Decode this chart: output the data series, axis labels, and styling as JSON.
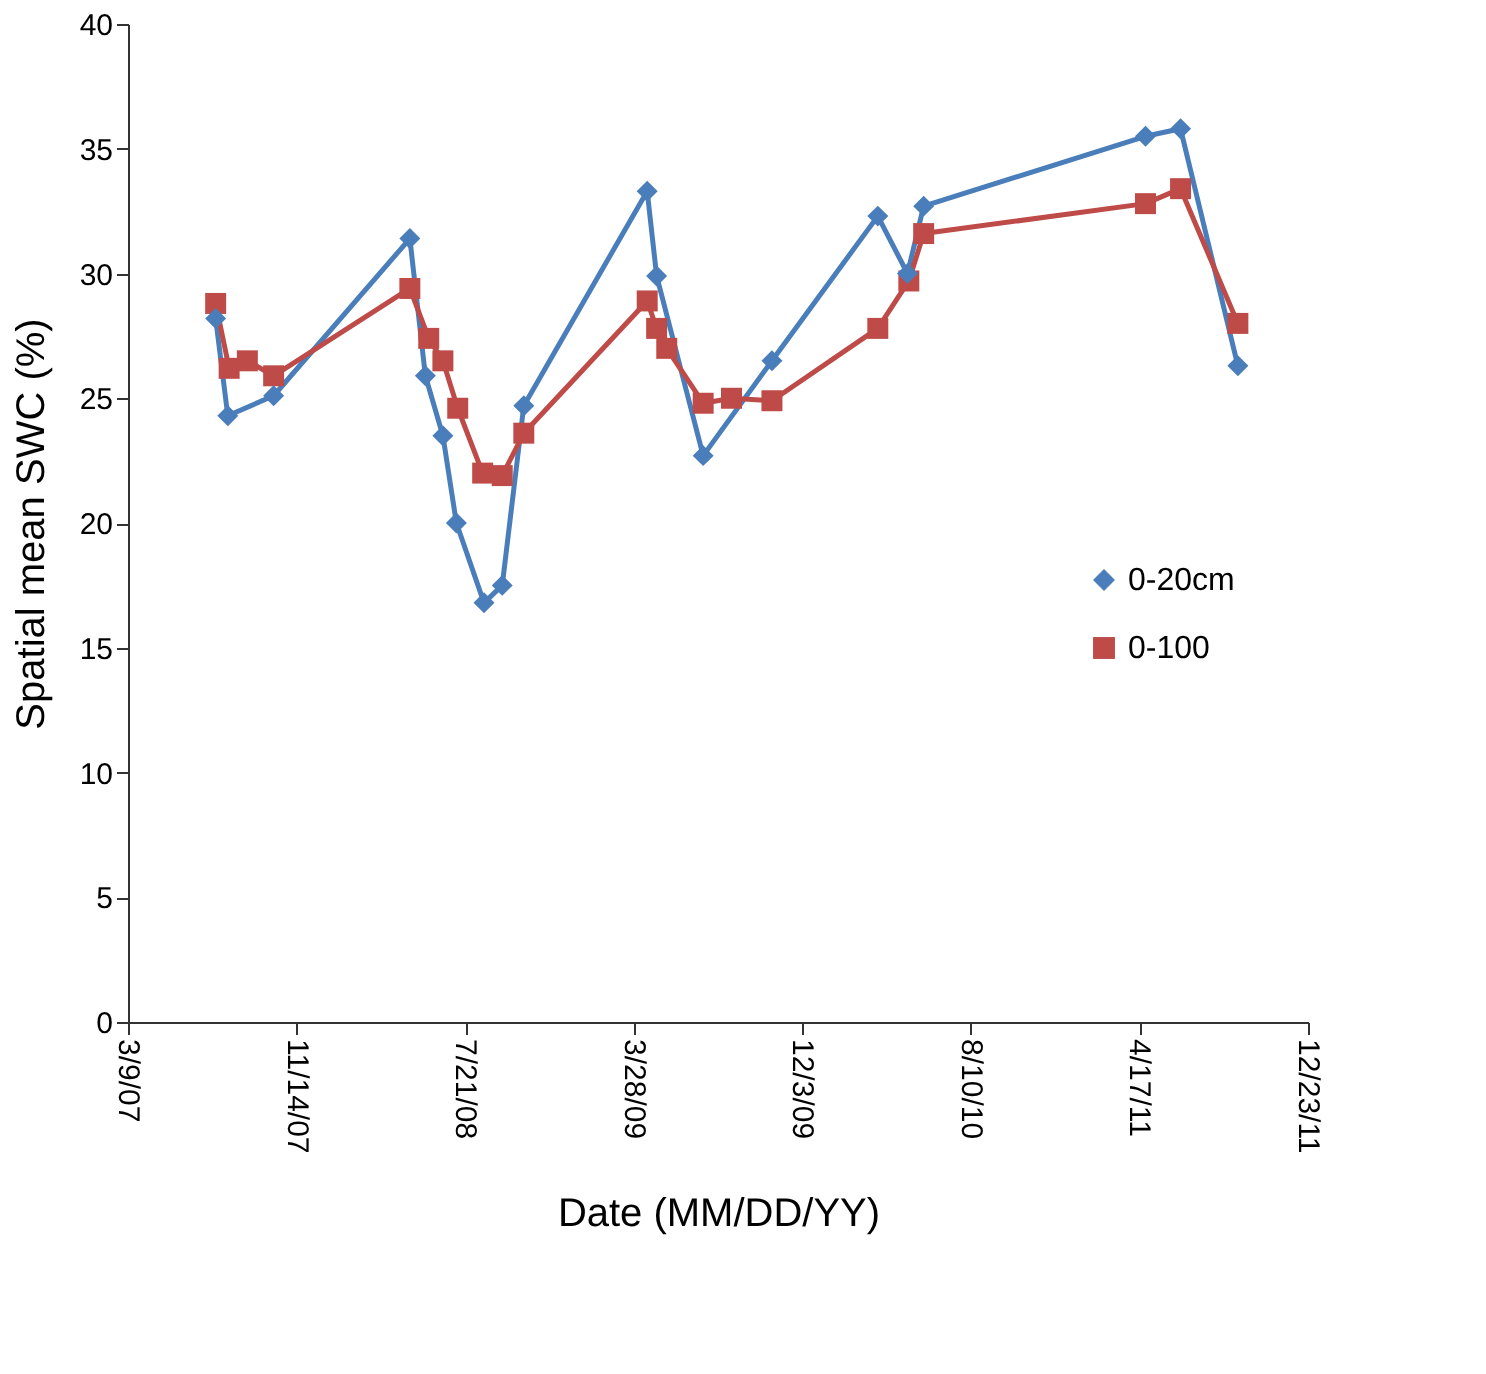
{
  "chart_data": {
    "type": "line",
    "xlabel": "Date (MM/DD/YY)",
    "ylabel": "Spatial mean SWC (%)",
    "xlim": [
      "2007-03-09",
      "2011-12-23"
    ],
    "ylim": [
      0,
      40
    ],
    "yticks": [
      0,
      5,
      10,
      15,
      20,
      25,
      30,
      35,
      40
    ],
    "xticks": [
      {
        "value": "2007-03-09",
        "label": "3/9/07"
      },
      {
        "value": "2007-11-14",
        "label": "11/14/07"
      },
      {
        "value": "2008-07-21",
        "label": "7/21/08"
      },
      {
        "value": "2009-03-28",
        "label": "3/28/09"
      },
      {
        "value": "2009-12-03",
        "label": "12/3/09"
      },
      {
        "value": "2010-08-10",
        "label": "8/10/10"
      },
      {
        "value": "2011-04-17",
        "label": "4/17/11"
      },
      {
        "value": "2011-12-23",
        "label": "12/23/11"
      }
    ],
    "grid": false,
    "legend": "right",
    "line_style": "solid",
    "series": [
      {
        "name": "0-20cm",
        "color": "#4a7ebb",
        "marker": "diamond",
        "x": [
          "2007-07-17",
          "2007-08-04",
          "2007-10-11",
          "2008-04-30",
          "2008-05-23",
          "2008-06-18",
          "2008-07-08",
          "2008-08-18",
          "2008-09-14",
          "2008-10-16",
          "2009-04-17",
          "2009-05-01",
          "2009-07-09",
          "2009-10-19",
          "2010-03-25",
          "2010-05-08",
          "2010-06-01",
          "2011-04-26",
          "2011-06-17",
          "2011-09-10"
        ],
        "values": [
          28.2,
          24.3,
          25.1,
          31.4,
          25.9,
          23.5,
          20.0,
          16.8,
          17.5,
          24.7,
          33.3,
          29.9,
          22.7,
          26.5,
          32.3,
          30.0,
          32.7,
          35.5,
          35.8,
          26.3
        ]
      },
      {
        "name": "0-100",
        "color": "#be4b48",
        "marker": "square",
        "x": [
          "2007-07-17",
          "2007-08-06",
          "2007-09-02",
          "2007-10-11",
          "2008-04-30",
          "2008-05-28",
          "2008-06-18",
          "2008-07-10",
          "2008-08-16",
          "2008-09-14",
          "2008-10-16",
          "2009-04-17",
          "2009-05-01",
          "2009-05-16",
          "2009-07-09",
          "2009-08-20",
          "2009-10-19",
          "2010-03-25",
          "2010-05-10",
          "2010-06-01",
          "2011-04-26",
          "2011-06-17",
          "2011-09-10"
        ],
        "values": [
          28.8,
          26.2,
          26.5,
          25.9,
          29.4,
          27.4,
          26.5,
          24.6,
          22.0,
          21.9,
          23.6,
          28.9,
          27.8,
          27.0,
          24.8,
          25.0,
          24.9,
          27.8,
          29.7,
          31.6,
          32.8,
          33.4,
          28.0
        ]
      }
    ]
  }
}
